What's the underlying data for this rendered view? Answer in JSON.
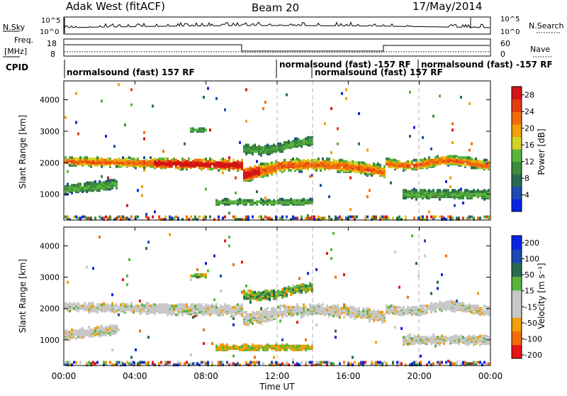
{
  "header": {
    "station": "Adak West (fitACF)",
    "beam": "Beam 20",
    "date": "17/May/2014"
  },
  "panels": {
    "nsky": {
      "label": "N.Sky",
      "right_label": "N.Search",
      "ticks_left": [
        "10^5",
        "10^0"
      ],
      "ticks_right": [
        "10^5",
        "10^0"
      ]
    },
    "freq": {
      "label_a": "Freq.",
      "label_b": "[MHz]",
      "ticks_left": [
        "18",
        "8"
      ],
      "ticks_right": [
        "60",
        "0"
      ],
      "right_label": "Nave"
    },
    "cpid": {
      "label": "CPID",
      "segments": [
        {
          "text": "normalsound (fast) 157 RF"
        },
        {
          "text": "normalsound (fast) -157 RF"
        },
        {
          "text": "normalsound (fast) 157 RF"
        },
        {
          "text": "normalsound (fast) -157 RF"
        }
      ]
    }
  },
  "colors": {
    "power": [
      "#0a24e6",
      "#1e4ab4",
      "#2a6a50",
      "#3c8c3c",
      "#5ab43c",
      "#d2d228",
      "#f0a000",
      "#f06e0a",
      "#e63c14",
      "#d21414"
    ],
    "velocity": [
      "#e61414",
      "#f06e0a",
      "#f0a000",
      "#c8c8c8",
      "#c8c8c8",
      "#5ab43c",
      "#2a6a50",
      "#1e4ab4",
      "#0a24e6"
    ]
  },
  "chart_data": [
    {
      "type": "heatmap",
      "quantity": "power",
      "ylabel": "Slant Range [km]",
      "ylim": [
        180,
        4600
      ],
      "yticks": [
        "1000",
        "2000",
        "3000",
        "4000"
      ],
      "colorbar": {
        "label": "Power [dB]",
        "ticks": [
          "4",
          "8",
          "12",
          "16",
          "20",
          "24",
          "28"
        ],
        "range": [
          0,
          30
        ]
      }
    },
    {
      "type": "heatmap",
      "quantity": "velocity",
      "ylabel": "Slant Range [km]",
      "ylim": [
        180,
        4600
      ],
      "yticks": [
        "1000",
        "2000",
        "3000",
        "4000"
      ],
      "colorbar": {
        "label": "Velocity [m s⁻¹]",
        "ticks": [
          "200",
          "100",
          "50",
          "15",
          "-15",
          "-50",
          "-100",
          "-200"
        ]
      }
    }
  ],
  "x_axis": {
    "label": "Time UT",
    "ticks": [
      "00:00",
      "04:00",
      "08:00",
      "12:00",
      "16:00",
      "20:00",
      "00:00"
    ],
    "range_hours": [
      0,
      24
    ]
  }
}
